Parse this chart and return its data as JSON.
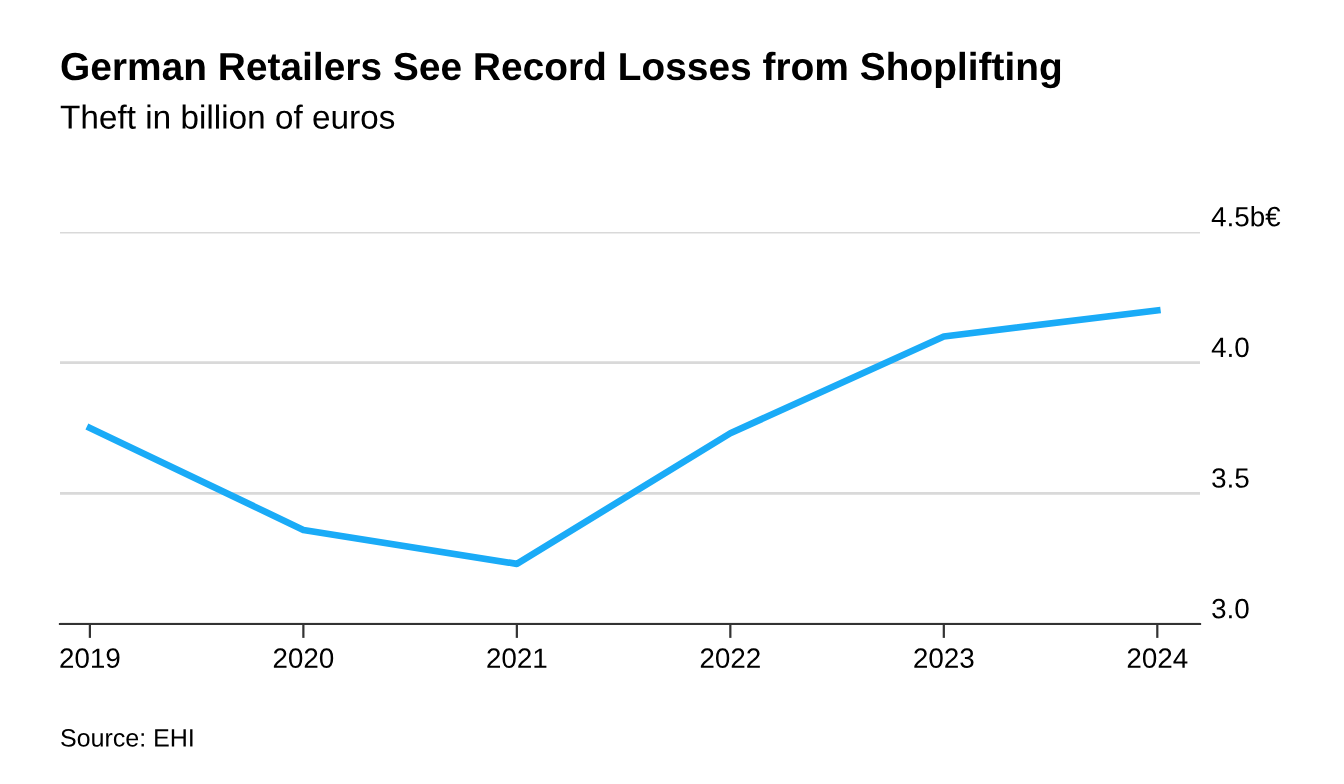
{
  "chart_data": {
    "type": "line",
    "title": "German Retailers See Record Losses from Shoplifting",
    "subtitle": "Theft in billion of euros",
    "x": [
      2019,
      2020,
      2021,
      2022,
      2023,
      2024
    ],
    "series": [
      {
        "color": "#1aabf7",
        "values": [
          3.75,
          3.36,
          3.23,
          3.73,
          4.1,
          4.2
        ]
      }
    ],
    "xlim": [
      2018.86,
      2024.2
    ],
    "xticks": [
      2019,
      2020,
      2021,
      2022,
      2023,
      2024
    ],
    "ylim": [
      3.0,
      4.5
    ],
    "yticks": [
      {
        "value": 3.0,
        "label": "3.0"
      },
      3.5,
      {
        "value": 4.0,
        "label": "4.0"
      },
      {
        "value": 4.5,
        "label": "4.5b€"
      }
    ],
    "grid": "y",
    "legend": false,
    "marker": "none",
    "line_style": "solid",
    "annotations": [
      "Source: EHI"
    ]
  }
}
